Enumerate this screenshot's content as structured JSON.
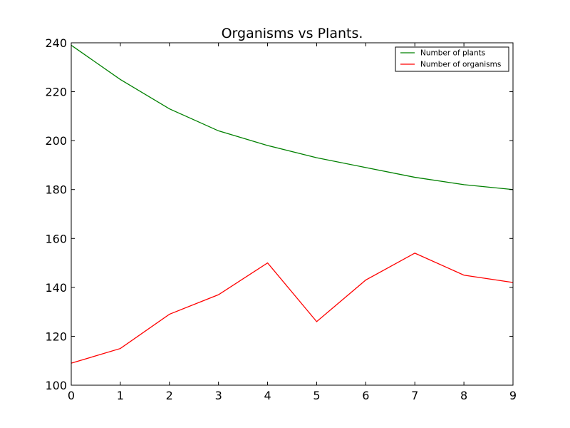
{
  "chart_data": {
    "type": "line",
    "title": "Organisms vs Plants.",
    "xlabel": "",
    "ylabel": "",
    "x": [
      0,
      1,
      2,
      3,
      4,
      5,
      6,
      7,
      8,
      9
    ],
    "xlim": [
      0,
      9
    ],
    "ylim": [
      100,
      240
    ],
    "xticks": [
      0,
      1,
      2,
      3,
      4,
      5,
      6,
      7,
      8,
      9
    ],
    "yticks": [
      100,
      120,
      140,
      160,
      180,
      200,
      220,
      240
    ],
    "grid": false,
    "legend_position": "top-right",
    "series": [
      {
        "name": "Number of plants",
        "color": "#008000",
        "values": [
          239,
          225,
          213,
          204,
          198,
          193,
          189,
          185,
          182,
          180
        ]
      },
      {
        "name": "Number of organisms",
        "color": "#ff0000",
        "values": [
          109,
          115,
          129,
          137,
          150,
          126,
          143,
          154,
          145,
          142
        ]
      }
    ]
  }
}
